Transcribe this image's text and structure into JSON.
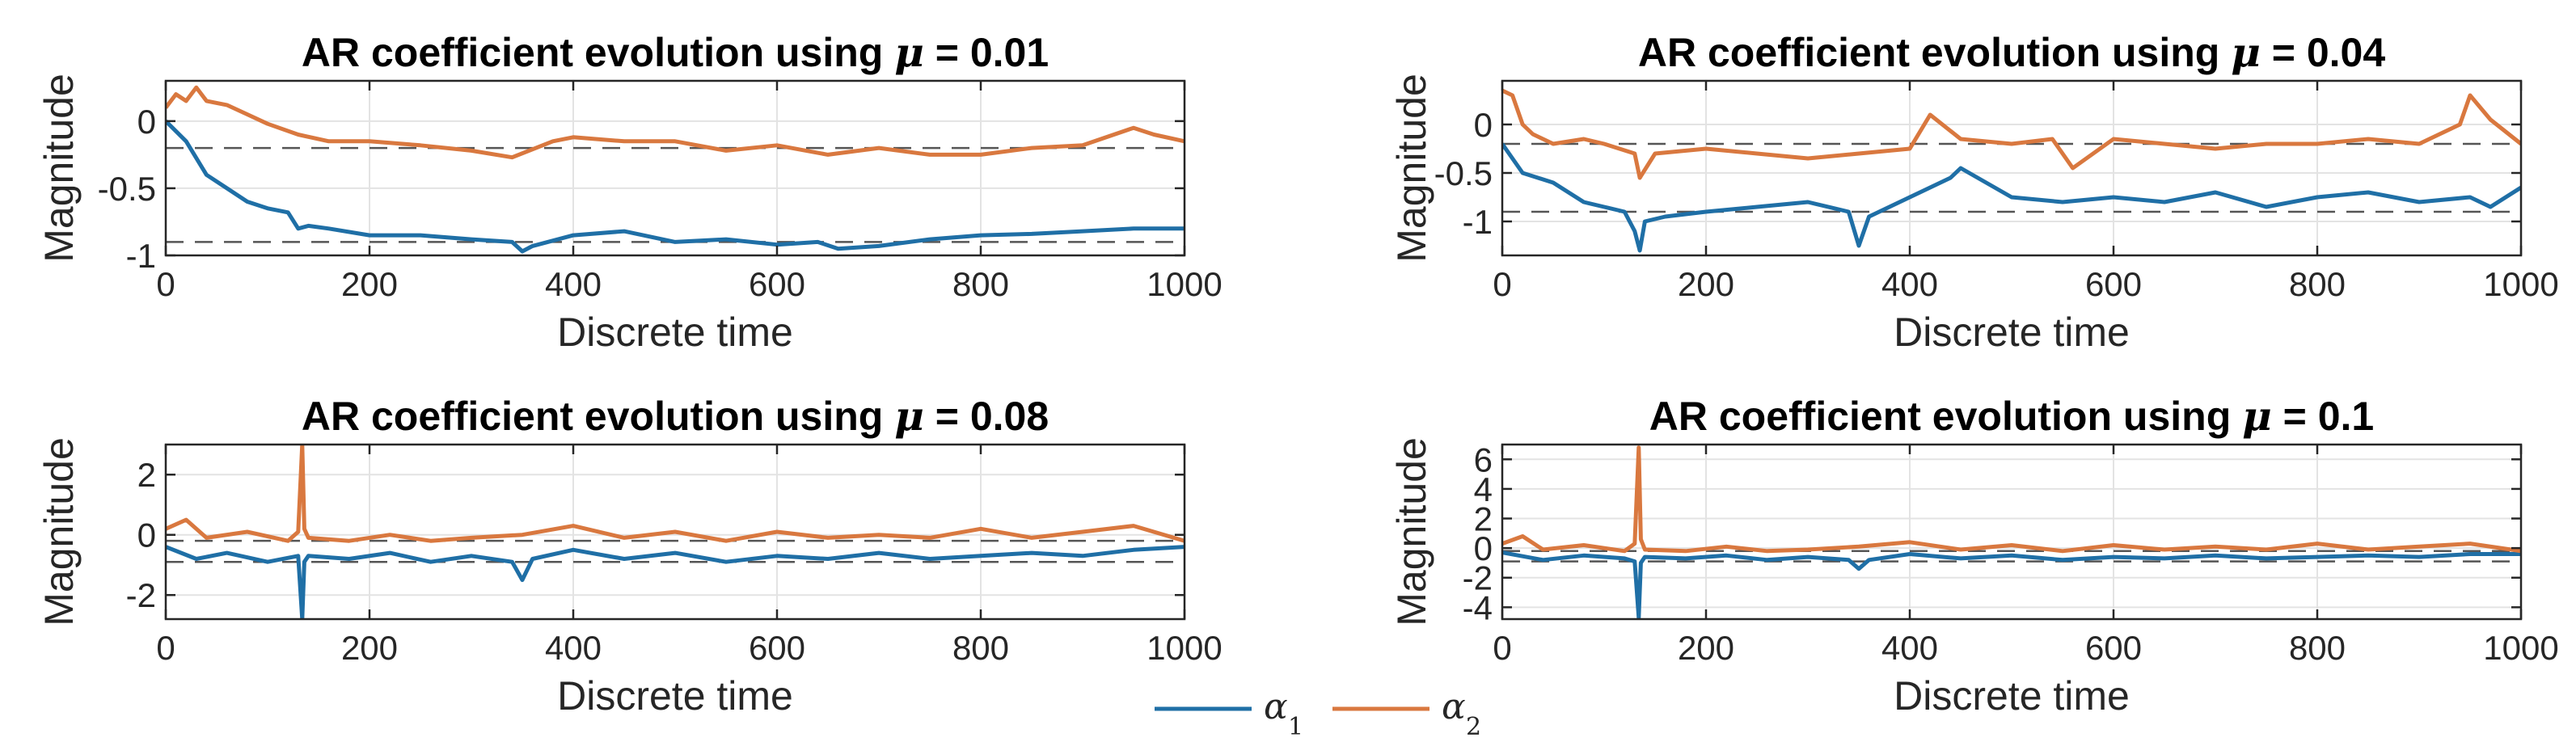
{
  "figure": {
    "legend": {
      "entries": [
        {
          "symbol": "α",
          "subscript": "1",
          "color": "#1F6FA6"
        },
        {
          "symbol": "α",
          "subscript": "2",
          "color": "#D9783F"
        }
      ],
      "placement": "bottom-center"
    }
  },
  "chart_data": [
    {
      "type": "line",
      "title_prefix": "AR coefficient evolution using ",
      "title_symbol": "μ",
      "title_suffix": " = 0.01",
      "xlabel": "Discrete time",
      "ylabel": "Magnitude",
      "xlim": [
        0,
        1000
      ],
      "ylim": [
        -1,
        0.3
      ],
      "xticks": [
        0,
        200,
        400,
        600,
        800,
        1000
      ],
      "yticks": [
        -1,
        -0.5,
        0
      ],
      "ytick_labels": [
        "-1",
        "-0.5",
        "0"
      ],
      "grid": true,
      "reference_lines": [
        -0.2,
        -0.9
      ],
      "series": [
        {
          "name": "α1",
          "color": "#1F6FA6",
          "x": [
            0,
            20,
            40,
            60,
            80,
            100,
            120,
            130,
            140,
            160,
            200,
            250,
            300,
            340,
            350,
            360,
            400,
            450,
            500,
            550,
            600,
            640,
            660,
            700,
            750,
            800,
            850,
            900,
            950,
            1000
          ],
          "y": [
            0,
            -0.15,
            -0.4,
            -0.5,
            -0.6,
            -0.65,
            -0.68,
            -0.8,
            -0.78,
            -0.8,
            -0.85,
            -0.85,
            -0.88,
            -0.9,
            -0.97,
            -0.93,
            -0.85,
            -0.82,
            -0.9,
            -0.88,
            -0.92,
            -0.9,
            -0.95,
            -0.93,
            -0.88,
            -0.85,
            -0.84,
            -0.82,
            -0.8,
            -0.8
          ]
        },
        {
          "name": "α2",
          "color": "#D9783F",
          "x": [
            0,
            10,
            20,
            30,
            40,
            60,
            80,
            100,
            130,
            160,
            200,
            250,
            300,
            340,
            380,
            400,
            450,
            500,
            550,
            600,
            650,
            700,
            750,
            800,
            850,
            900,
            950,
            970,
            1000
          ],
          "y": [
            0.1,
            0.2,
            0.15,
            0.25,
            0.15,
            0.12,
            0.05,
            -0.02,
            -0.1,
            -0.15,
            -0.15,
            -0.18,
            -0.22,
            -0.27,
            -0.15,
            -0.12,
            -0.15,
            -0.15,
            -0.22,
            -0.18,
            -0.25,
            -0.2,
            -0.25,
            -0.25,
            -0.2,
            -0.18,
            -0.05,
            -0.1,
            -0.15
          ]
        }
      ]
    },
    {
      "type": "line",
      "title_prefix": "AR coefficient evolution using ",
      "title_symbol": "μ",
      "title_suffix": " = 0.04",
      "xlabel": "Discrete time",
      "ylabel": "Magnitude",
      "xlim": [
        0,
        1000
      ],
      "ylim": [
        -1.35,
        0.45
      ],
      "xticks": [
        0,
        200,
        400,
        600,
        800,
        1000
      ],
      "yticks": [
        -1,
        -0.5,
        0
      ],
      "ytick_labels": [
        "-1",
        "-0.5",
        "0"
      ],
      "grid": true,
      "reference_lines": [
        -0.2,
        -0.9
      ],
      "series": [
        {
          "name": "α1",
          "color": "#1F6FA6",
          "x": [
            0,
            20,
            50,
            80,
            100,
            120,
            130,
            135,
            140,
            160,
            200,
            250,
            300,
            340,
            350,
            360,
            400,
            440,
            450,
            500,
            550,
            600,
            650,
            700,
            750,
            800,
            850,
            900,
            950,
            970,
            1000
          ],
          "y": [
            -0.2,
            -0.5,
            -0.6,
            -0.8,
            -0.85,
            -0.9,
            -1.1,
            -1.3,
            -1.0,
            -0.95,
            -0.9,
            -0.85,
            -0.8,
            -0.9,
            -1.25,
            -0.95,
            -0.75,
            -0.55,
            -0.45,
            -0.75,
            -0.8,
            -0.75,
            -0.8,
            -0.7,
            -0.85,
            -0.75,
            -0.7,
            -0.8,
            -0.75,
            -0.85,
            -0.65
          ]
        },
        {
          "name": "α2",
          "color": "#D9783F",
          "x": [
            0,
            10,
            20,
            30,
            50,
            80,
            100,
            130,
            135,
            150,
            200,
            250,
            300,
            350,
            400,
            420,
            450,
            500,
            540,
            560,
            600,
            650,
            700,
            750,
            800,
            850,
            900,
            940,
            950,
            970,
            1000
          ],
          "y": [
            0.35,
            0.3,
            0.0,
            -0.1,
            -0.2,
            -0.15,
            -0.2,
            -0.3,
            -0.55,
            -0.3,
            -0.25,
            -0.3,
            -0.35,
            -0.3,
            -0.25,
            0.1,
            -0.15,
            -0.2,
            -0.15,
            -0.45,
            -0.15,
            -0.2,
            -0.25,
            -0.2,
            -0.2,
            -0.15,
            -0.2,
            0.0,
            0.3,
            0.05,
            -0.2
          ]
        }
      ]
    },
    {
      "type": "line",
      "title_prefix": "AR coefficient evolution using ",
      "title_symbol": "μ",
      "title_suffix": " = 0.08",
      "xlabel": "Discrete time",
      "ylabel": "Magnitude",
      "xlim": [
        0,
        1000
      ],
      "ylim": [
        -2.8,
        3
      ],
      "xticks": [
        0,
        200,
        400,
        600,
        800,
        1000
      ],
      "yticks": [
        -2,
        0,
        2
      ],
      "ytick_labels": [
        "-2",
        "0",
        "2"
      ],
      "grid": true,
      "reference_lines": [
        -0.2,
        -0.9
      ],
      "series": [
        {
          "name": "α1",
          "color": "#1F6FA6",
          "x": [
            0,
            30,
            60,
            100,
            130,
            134,
            136,
            140,
            180,
            220,
            260,
            300,
            340,
            350,
            360,
            400,
            450,
            500,
            550,
            600,
            650,
            700,
            750,
            800,
            850,
            900,
            950,
            1000
          ],
          "y": [
            -0.4,
            -0.8,
            -0.6,
            -0.9,
            -0.7,
            -2.8,
            -0.9,
            -0.7,
            -0.8,
            -0.6,
            -0.9,
            -0.7,
            -0.9,
            -1.5,
            -0.8,
            -0.5,
            -0.8,
            -0.6,
            -0.9,
            -0.7,
            -0.8,
            -0.6,
            -0.8,
            -0.7,
            -0.6,
            -0.7,
            -0.5,
            -0.4
          ]
        },
        {
          "name": "α2",
          "color": "#D9783F",
          "x": [
            0,
            20,
            40,
            80,
            120,
            130,
            134,
            136,
            140,
            180,
            220,
            260,
            300,
            350,
            400,
            450,
            500,
            550,
            600,
            650,
            700,
            750,
            800,
            850,
            900,
            950,
            1000
          ],
          "y": [
            0.2,
            0.5,
            -0.1,
            0.1,
            -0.2,
            0.1,
            3.0,
            0.2,
            -0.1,
            -0.2,
            0.0,
            -0.2,
            -0.1,
            0.0,
            0.3,
            -0.1,
            0.1,
            -0.2,
            0.1,
            -0.1,
            0.0,
            -0.1,
            0.2,
            -0.1,
            0.1,
            0.3,
            -0.2
          ]
        }
      ]
    },
    {
      "type": "line",
      "title_prefix": "AR coefficient evolution using ",
      "title_symbol": "μ",
      "title_suffix": " = 0.1",
      "xlabel": "Discrete time",
      "ylabel": "Magnitude",
      "xlim": [
        0,
        1000
      ],
      "ylim": [
        -4.8,
        7
      ],
      "xticks": [
        0,
        200,
        400,
        600,
        800,
        1000
      ],
      "yticks": [
        -4,
        -2,
        0,
        2,
        4,
        6
      ],
      "ytick_labels": [
        "-4",
        "-2",
        "0",
        "2",
        "4",
        "6"
      ],
      "grid": true,
      "reference_lines": [
        -0.2,
        -0.9
      ],
      "series": [
        {
          "name": "α1",
          "color": "#1F6FA6",
          "x": [
            0,
            40,
            80,
            120,
            130,
            134,
            136,
            140,
            180,
            220,
            260,
            300,
            340,
            350,
            360,
            400,
            450,
            500,
            550,
            600,
            650,
            700,
            750,
            800,
            850,
            900,
            950,
            1000
          ],
          "y": [
            -0.3,
            -0.8,
            -0.5,
            -0.7,
            -0.9,
            -4.7,
            -1.0,
            -0.6,
            -0.7,
            -0.5,
            -0.8,
            -0.6,
            -0.8,
            -1.4,
            -0.8,
            -0.4,
            -0.7,
            -0.5,
            -0.8,
            -0.6,
            -0.7,
            -0.5,
            -0.7,
            -0.6,
            -0.5,
            -0.6,
            -0.4,
            -0.4
          ]
        },
        {
          "name": "α2",
          "color": "#D9783F",
          "x": [
            0,
            20,
            40,
            80,
            120,
            130,
            134,
            136,
            140,
            180,
            220,
            260,
            300,
            350,
            400,
            450,
            500,
            550,
            600,
            650,
            700,
            750,
            800,
            850,
            900,
            950,
            1000
          ],
          "y": [
            0.3,
            0.8,
            -0.1,
            0.2,
            -0.2,
            0.3,
            6.8,
            0.6,
            -0.1,
            -0.2,
            0.1,
            -0.2,
            -0.1,
            0.1,
            0.4,
            -0.1,
            0.2,
            -0.2,
            0.2,
            -0.1,
            0.1,
            -0.1,
            0.3,
            -0.1,
            0.1,
            0.3,
            -0.2
          ]
        }
      ]
    }
  ]
}
